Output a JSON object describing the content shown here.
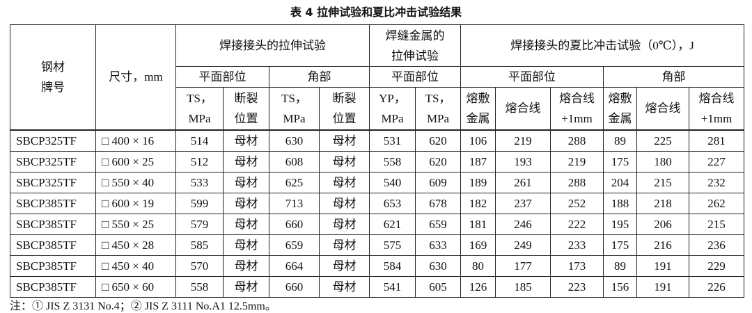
{
  "title": "表 4 拉伸试验和夏比冲击试验结果",
  "header": {
    "steel": [
      "钢材",
      "牌号"
    ],
    "size": [
      "尺寸，mm"
    ],
    "tensile": [
      "焊接接头的拉伸试验"
    ],
    "weld_metal": [
      "焊缝金属的",
      "拉伸试验"
    ],
    "charpy": [
      "焊接接头的夏比冲击试验（0℃），J"
    ],
    "groups": [
      "平面部位",
      "角部",
      "平面部位",
      "平面部位",
      "角部"
    ],
    "columns": [
      [
        "TS，",
        "MPa"
      ],
      [
        "断裂",
        "位置"
      ],
      [
        "TS，",
        "MPa"
      ],
      [
        "断裂",
        "位置"
      ],
      [
        "YP，",
        "MPa"
      ],
      [
        "TS，",
        "MPa"
      ],
      [
        "熔敷",
        "金属"
      ],
      [
        "熔合线"
      ],
      [
        "熔合线",
        "+1mm"
      ],
      [
        "熔敷",
        "金属"
      ],
      [
        "熔合线"
      ],
      [
        "熔合线",
        "+1mm"
      ]
    ]
  },
  "table": {
    "rows": [
      [
        "SBCP325TF",
        "□ 400 × 16",
        514,
        "母材",
        630,
        "母材",
        531,
        620,
        106,
        219,
        288,
        89,
        225,
        281
      ],
      [
        "SBCP325TF",
        "□ 600 × 25",
        512,
        "母材",
        608,
        "母材",
        558,
        620,
        187,
        193,
        219,
        175,
        180,
        227
      ],
      [
        "SBCP325TF",
        "□ 550 × 40",
        533,
        "母材",
        625,
        "母材",
        540,
        609,
        189,
        261,
        288,
        204,
        215,
        232
      ],
      [
        "SBCP385TF",
        "□ 600 × 19",
        599,
        "母材",
        713,
        "母材",
        653,
        678,
        182,
        237,
        252,
        188,
        218,
        262
      ],
      [
        "SBCP385TF",
        "□ 550 × 25",
        579,
        "母材",
        660,
        "母材",
        621,
        659,
        181,
        246,
        222,
        195,
        206,
        215
      ],
      [
        "SBCP385TF",
        "□ 450 × 28",
        585,
        "母材",
        659,
        "母材",
        575,
        633,
        169,
        249,
        233,
        175,
        216,
        236
      ],
      [
        "SBCP385TF",
        "□ 450 × 40",
        570,
        "母材",
        664,
        "母材",
        584,
        630,
        80,
        177,
        173,
        89,
        191,
        229
      ],
      [
        "SBCP385TF",
        "□ 650 × 60",
        558,
        "母材",
        660,
        "母材",
        541,
        605,
        126,
        185,
        223,
        156,
        191,
        226
      ]
    ]
  },
  "note": "注：① JIS Z 3131 No.4；② JIS Z 3111 No.A1 12.5mm。"
}
